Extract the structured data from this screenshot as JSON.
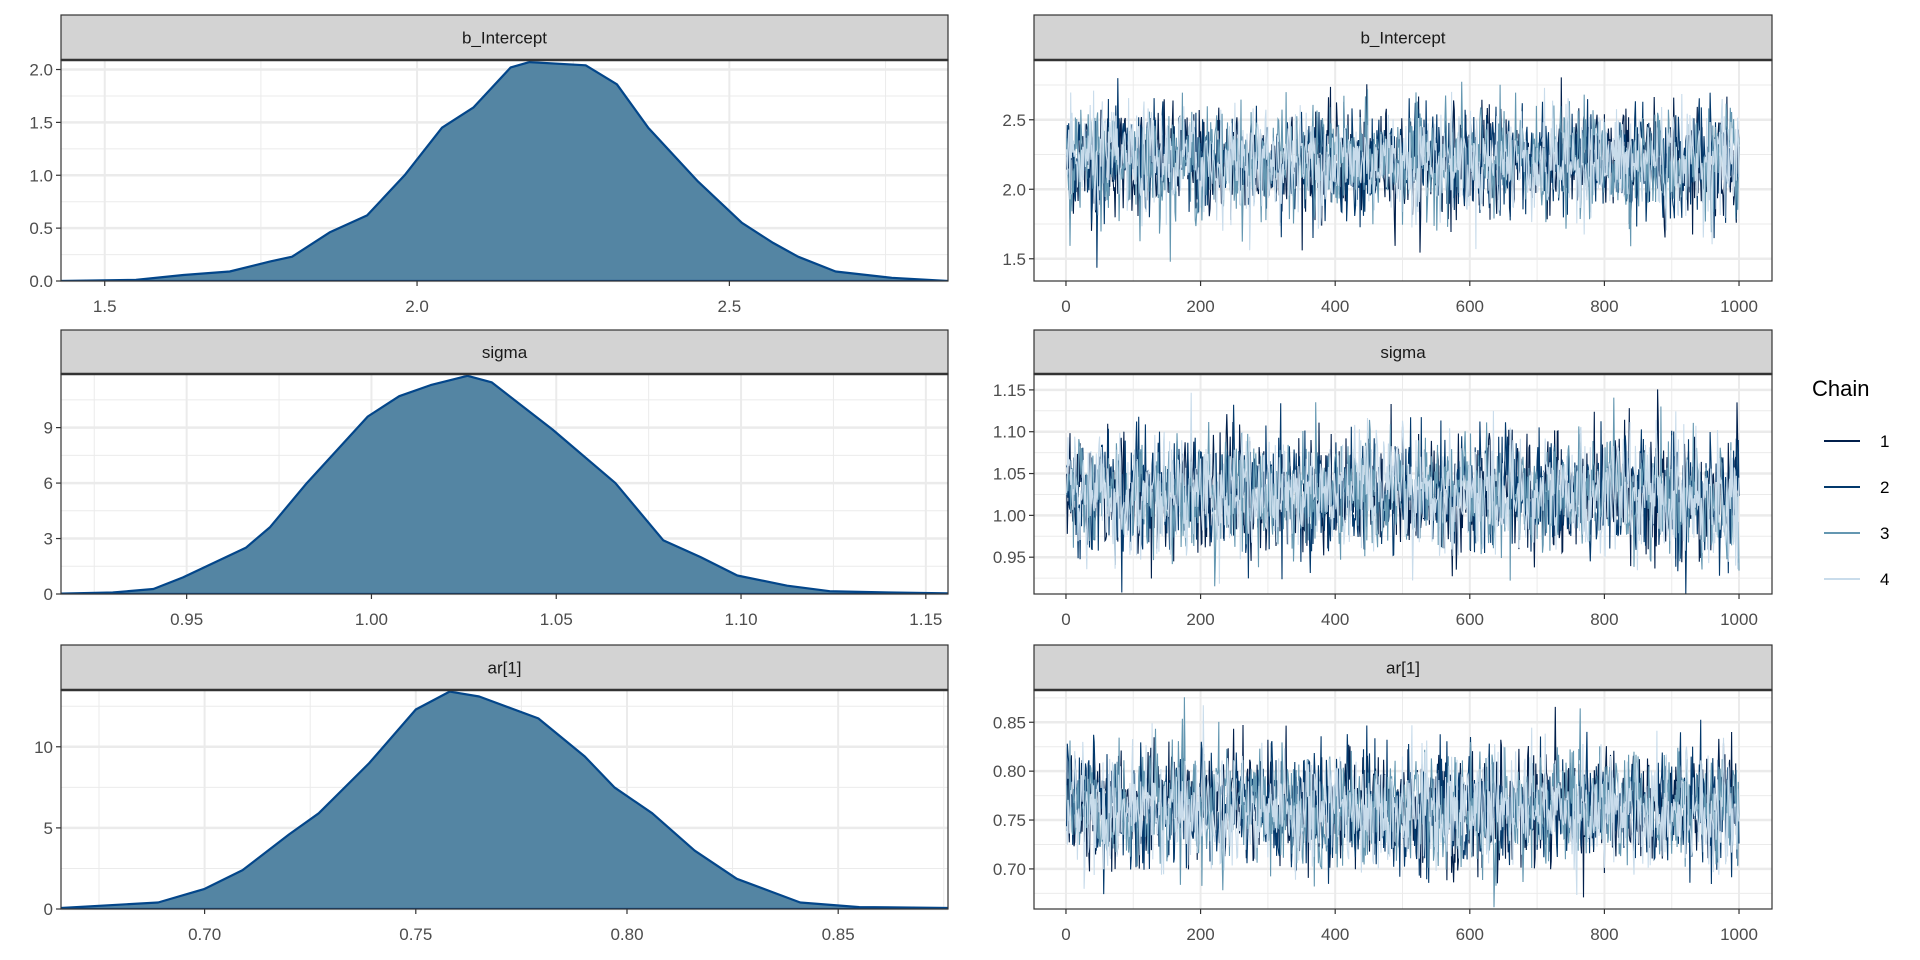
{
  "chart_data": {
    "type": "density+trace",
    "title": "",
    "legend": {
      "title": "Chain",
      "placement": "right",
      "labels": [
        "1",
        "2",
        "3",
        "4"
      ],
      "colors": [
        "#011f4b",
        "#03396c",
        "#6497b1",
        "#c9dceb"
      ]
    },
    "colors": {
      "density_fill": "#5485a3",
      "density_line": "#03468a",
      "strip_fill": "#d3d3d3",
      "grid": "#ebebeb",
      "border": "#333333"
    },
    "density": [
      {
        "param": "b_Intercept",
        "xlim": [
          1.43,
          2.85
        ],
        "ylim": [
          0,
          2.09
        ],
        "x_ticks": [
          "1.5",
          "2.0",
          "2.5"
        ],
        "y_ticks": [
          "0.0",
          "0.5",
          "1.0",
          "1.5",
          "2.0"
        ],
        "curve": [
          [
            1.43,
            0
          ],
          [
            1.55,
            0.01
          ],
          [
            1.626,
            0.057
          ],
          [
            1.7,
            0.09
          ],
          [
            1.765,
            0.185
          ],
          [
            1.8,
            0.23
          ],
          [
            1.86,
            0.46
          ],
          [
            1.92,
            0.62
          ],
          [
            1.98,
            1.0
          ],
          [
            2.04,
            1.45
          ],
          [
            2.09,
            1.64
          ],
          [
            2.15,
            2.02
          ],
          [
            2.18,
            2.07
          ],
          [
            2.27,
            2.04
          ],
          [
            2.32,
            1.86
          ],
          [
            2.37,
            1.45
          ],
          [
            2.45,
            0.94
          ],
          [
            2.52,
            0.55
          ],
          [
            2.57,
            0.36
          ],
          [
            2.61,
            0.23
          ],
          [
            2.67,
            0.09
          ],
          [
            2.76,
            0.03
          ],
          [
            2.85,
            0.0
          ]
        ]
      },
      {
        "param": "sigma",
        "xlim": [
          0.916,
          1.156
        ],
        "ylim": [
          0,
          11.9
        ],
        "x_ticks": [
          "0.95",
          "1.00",
          "1.05",
          "1.10",
          "1.15"
        ],
        "y_ticks": [
          "0",
          "3",
          "6",
          "9"
        ],
        "curve": [
          [
            0.916,
            0.02
          ],
          [
            0.93,
            0.08
          ],
          [
            0.941,
            0.27
          ],
          [
            0.949,
            0.9
          ],
          [
            0.966,
            2.5
          ],
          [
            0.9725,
            3.6
          ],
          [
            0.9825,
            6.0
          ],
          [
            0.999,
            9.6
          ],
          [
            1.0075,
            10.7
          ],
          [
            1.016,
            11.3
          ],
          [
            1.026,
            11.8
          ],
          [
            1.0325,
            11.45
          ],
          [
            1.049,
            8.9
          ],
          [
            1.066,
            6.0
          ],
          [
            1.079,
            2.9
          ],
          [
            1.089,
            2.0
          ],
          [
            1.099,
            1.0
          ],
          [
            1.1125,
            0.45
          ],
          [
            1.124,
            0.15
          ],
          [
            1.14,
            0.08
          ],
          [
            1.156,
            0.04
          ]
        ]
      },
      {
        "param": "ar[1]",
        "xlim": [
          0.666,
          0.876
        ],
        "ylim": [
          0,
          13.5
        ],
        "x_ticks": [
          "0.70",
          "0.75",
          "0.80",
          "0.85"
        ],
        "y_ticks": [
          "0",
          "5",
          "10"
        ],
        "curve": [
          [
            0.666,
            0.06
          ],
          [
            0.689,
            0.4
          ],
          [
            0.7,
            1.24
          ],
          [
            0.709,
            2.4
          ],
          [
            0.72,
            4.6
          ],
          [
            0.727,
            5.9
          ],
          [
            0.739,
            9.0
          ],
          [
            0.75,
            12.3
          ],
          [
            0.758,
            13.4
          ],
          [
            0.765,
            13.1
          ],
          [
            0.779,
            11.75
          ],
          [
            0.79,
            9.4
          ],
          [
            0.797,
            7.5
          ],
          [
            0.806,
            5.9
          ],
          [
            0.816,
            3.6
          ],
          [
            0.826,
            1.86
          ],
          [
            0.841,
            0.4
          ],
          [
            0.855,
            0.12
          ],
          [
            0.876,
            0.06
          ]
        ]
      }
    ],
    "trace": [
      {
        "param": "b_Intercept",
        "xlim": [
          -47.5,
          1049
        ],
        "ylim": [
          1.34,
          2.93
        ],
        "x_ticks": [
          "0",
          "200",
          "400",
          "600",
          "800",
          "1000"
        ],
        "y_ticks": [
          "1.5",
          "2.0",
          "2.5"
        ],
        "n_iter": 1000,
        "mean": 2.2,
        "sd": 0.19
      },
      {
        "param": "sigma",
        "xlim": [
          -47.5,
          1049
        ],
        "ylim": [
          0.906,
          1.169
        ],
        "x_ticks": [
          "0",
          "200",
          "400",
          "600",
          "800",
          "1000"
        ],
        "y_ticks": [
          "0.95",
          "1.00",
          "1.05",
          "1.10",
          "1.15"
        ],
        "n_iter": 1000,
        "mean": 1.025,
        "sd": 0.034
      },
      {
        "param": "ar[1]",
        "xlim": [
          -47.5,
          1049
        ],
        "ylim": [
          0.659,
          0.883
        ],
        "x_ticks": [
          "0",
          "200",
          "400",
          "600",
          "800",
          "1000"
        ],
        "y_ticks": [
          "0.70",
          "0.75",
          "0.80",
          "0.85"
        ],
        "n_iter": 1000,
        "mean": 0.762,
        "sd": 0.029
      }
    ]
  }
}
